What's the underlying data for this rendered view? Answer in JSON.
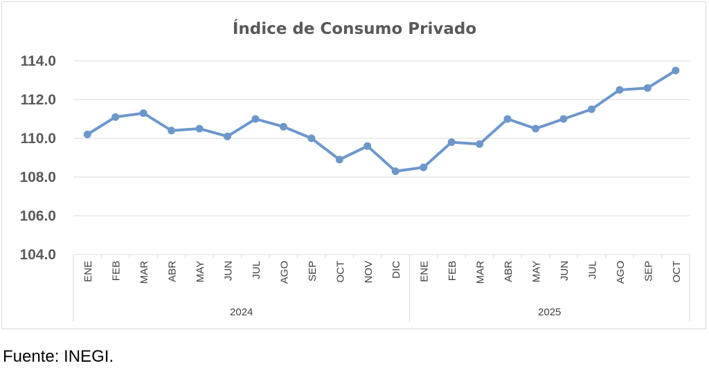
{
  "chart_data": {
    "type": "line",
    "title": "Índice de Consumo Privado",
    "xlabel": "",
    "ylabel": "",
    "ylim": [
      104,
      114
    ],
    "yticks": [
      "104.0",
      "106.0",
      "108.0",
      "110.0",
      "112.0",
      "114.0"
    ],
    "grid": true,
    "legend": "none",
    "color": "#6d97cc",
    "categories": [
      "ENE",
      "FEB",
      "MAR",
      "ABR",
      "MAY",
      "JUN",
      "JUL",
      "AGO",
      "SEP",
      "OCT",
      "NOV",
      "DIC",
      "ENE",
      "FEB",
      "MAR",
      "ABR",
      "MAY",
      "JUN",
      "JUL",
      "AGO",
      "SEP",
      "OCT"
    ],
    "groups": [
      {
        "label": "2024",
        "count": 12
      },
      {
        "label": "2025",
        "count": 10
      }
    ],
    "series": [
      {
        "name": "Índice de Consumo Privado",
        "values": [
          110.2,
          111.1,
          111.3,
          110.4,
          110.5,
          110.1,
          111.0,
          110.6,
          110.0,
          108.9,
          109.6,
          108.3,
          108.5,
          109.8,
          109.7,
          111.0,
          110.5,
          111.0,
          111.5,
          112.5,
          112.6,
          113.5
        ]
      }
    ]
  },
  "footer": {
    "source": "Fuente: INEGI."
  }
}
